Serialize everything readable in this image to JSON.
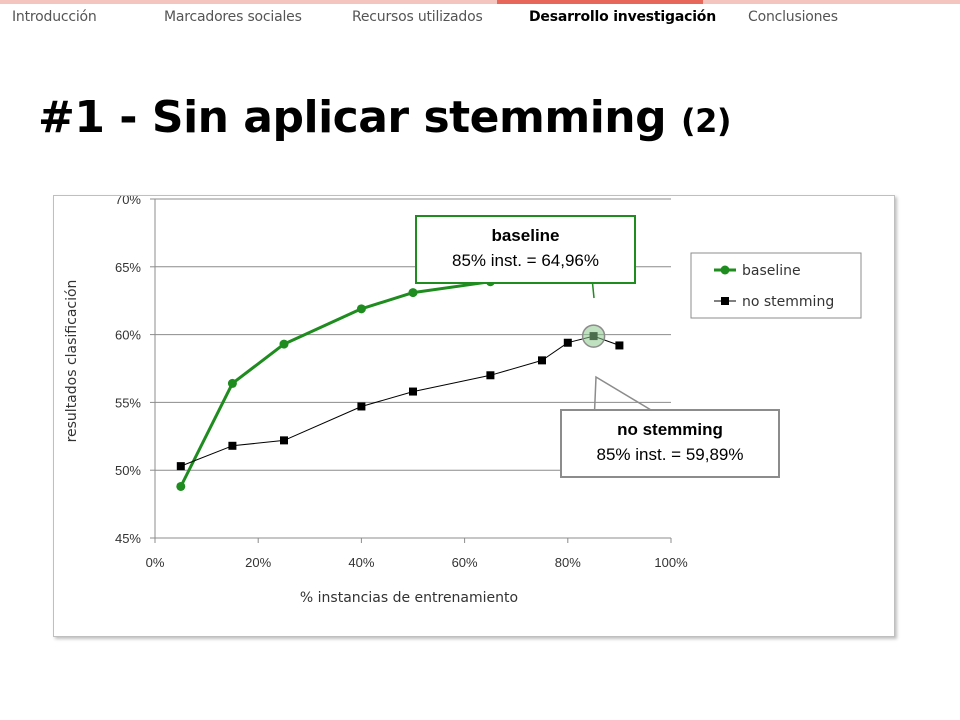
{
  "nav": {
    "items": [
      {
        "label": "Introducción",
        "active": false
      },
      {
        "label": "Marcadores sociales",
        "active": false
      },
      {
        "label": "Recursos utilizados",
        "active": false
      },
      {
        "label": "Desarrollo investigación",
        "active": true
      },
      {
        "label": "Conclusiones",
        "active": false
      }
    ]
  },
  "slide": {
    "title": "#1 - Sin aplicar stemming",
    "title_suffix": "(2)"
  },
  "chart_data": {
    "type": "line",
    "xlabel": "% instancias de entrenamiento",
    "ylabel": "resultados clasificación",
    "xlim": [
      0,
      100
    ],
    "ylim": [
      45,
      70
    ],
    "x_ticks": [
      "0%",
      "20%",
      "40%",
      "60%",
      "80%",
      "100%"
    ],
    "y_ticks": [
      "45%",
      "50%",
      "55%",
      "60%",
      "65%",
      "70%"
    ],
    "grid": "horizontal",
    "legend_position": "top-right",
    "series": [
      {
        "name": "baseline",
        "color": "#1e8c1e",
        "marker": "circle",
        "x": [
          5,
          15,
          25,
          40,
          50,
          65,
          75,
          80,
          85,
          90
        ],
        "values": [
          48.8,
          56.4,
          59.3,
          61.9,
          63.1,
          63.9,
          64.4,
          64.5,
          64.96,
          64.5
        ]
      },
      {
        "name": "no stemming",
        "color": "#000000",
        "marker": "square",
        "x": [
          5,
          15,
          25,
          40,
          50,
          65,
          75,
          80,
          85,
          90
        ],
        "values": [
          50.3,
          51.8,
          52.2,
          54.7,
          55.8,
          57.0,
          58.1,
          59.4,
          59.89,
          59.2
        ]
      }
    ],
    "annotations": [
      {
        "series": "baseline",
        "x": 85,
        "y": 64.96,
        "title": "baseline",
        "text": "85% inst. = 64,96%",
        "border_color": "#1e8c1e"
      },
      {
        "series": "no stemming",
        "x": 85,
        "y": 59.89,
        "title": "no stemming",
        "text": "85% inst. = 59,89%",
        "border_color": "#8c8c8c"
      }
    ]
  }
}
